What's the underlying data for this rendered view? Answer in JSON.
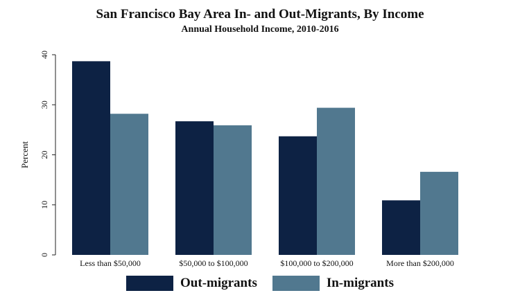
{
  "chart_data": {
    "type": "bar",
    "title": "San Francisco Bay Area In- and Out-Migrants, By Income",
    "subtitle": "Annual Household Income, 2010-2016",
    "xlabel": "",
    "ylabel": "Percent",
    "ylim": [
      0,
      40
    ],
    "yticks": [
      0,
      10,
      20,
      30,
      40
    ],
    "grid": false,
    "legend_position": "bottom",
    "categories": [
      "Less than $50,000",
      "$50,000 to $100,000",
      "$100,000 to $200,000",
      "More than $200,000"
    ],
    "series": [
      {
        "name": "Out-migrants",
        "color": "#0d2244",
        "values": [
          38.7,
          26.7,
          23.7,
          10.9
        ]
      },
      {
        "name": "In-migrants",
        "color": "#51788f",
        "values": [
          28.2,
          25.9,
          29.4,
          16.6
        ]
      }
    ]
  }
}
